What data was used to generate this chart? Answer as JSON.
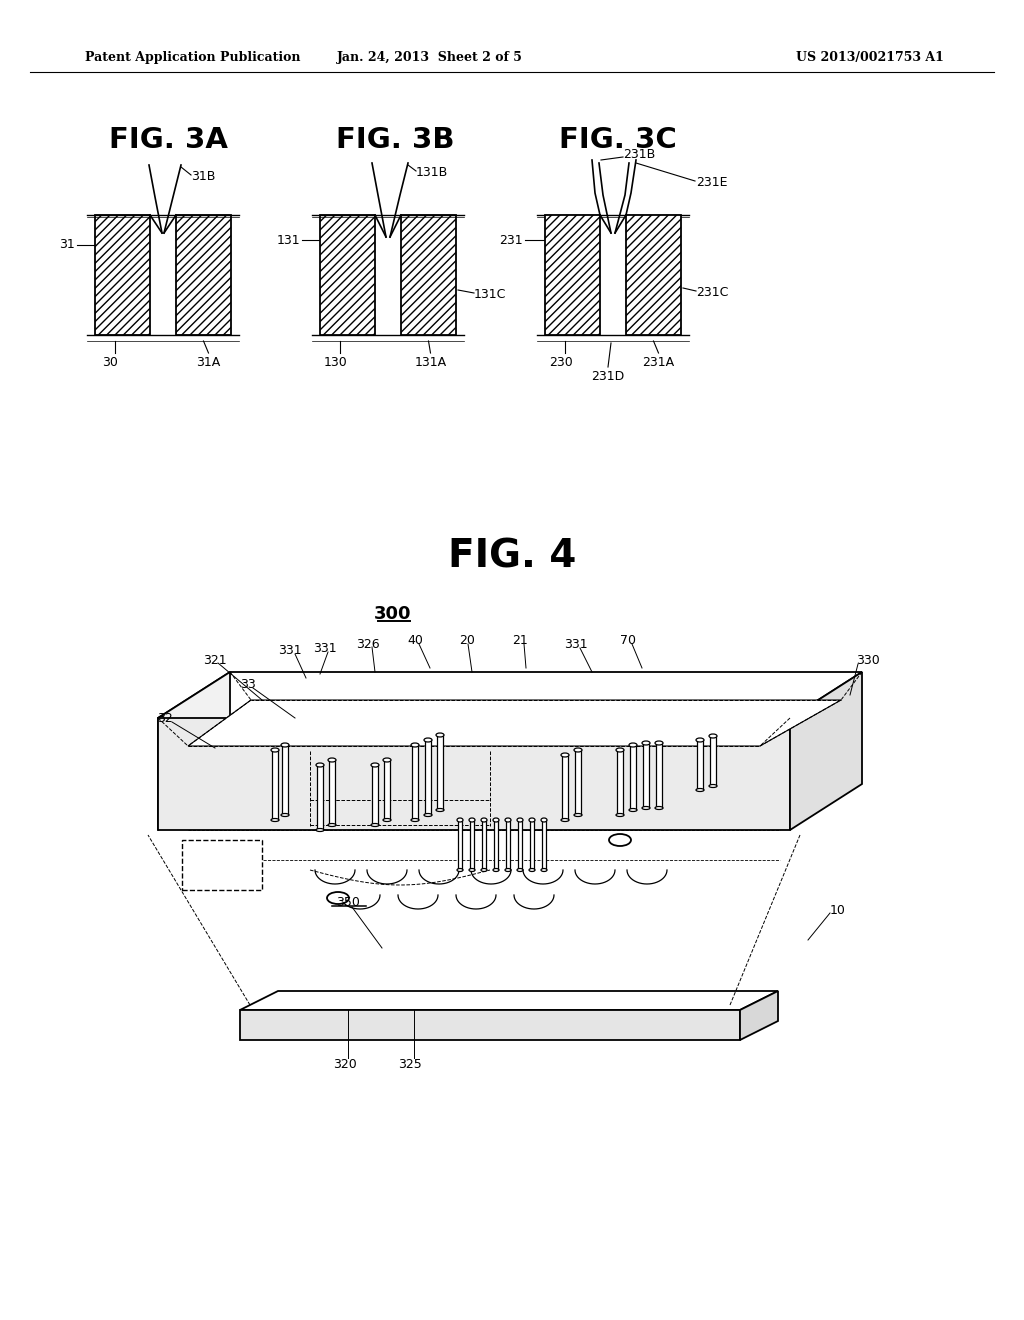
{
  "header_left": "Patent Application Publication",
  "header_mid": "Jan. 24, 2013  Sheet 2 of 5",
  "header_right": "US 2013/0021753 A1",
  "fig3a_title": "FIG. 3A",
  "fig3b_title": "FIG. 3B",
  "fig3c_title": "FIG. 3C",
  "fig4_title": "FIG. 4",
  "bg_color": "#ffffff",
  "line_color": "#000000"
}
